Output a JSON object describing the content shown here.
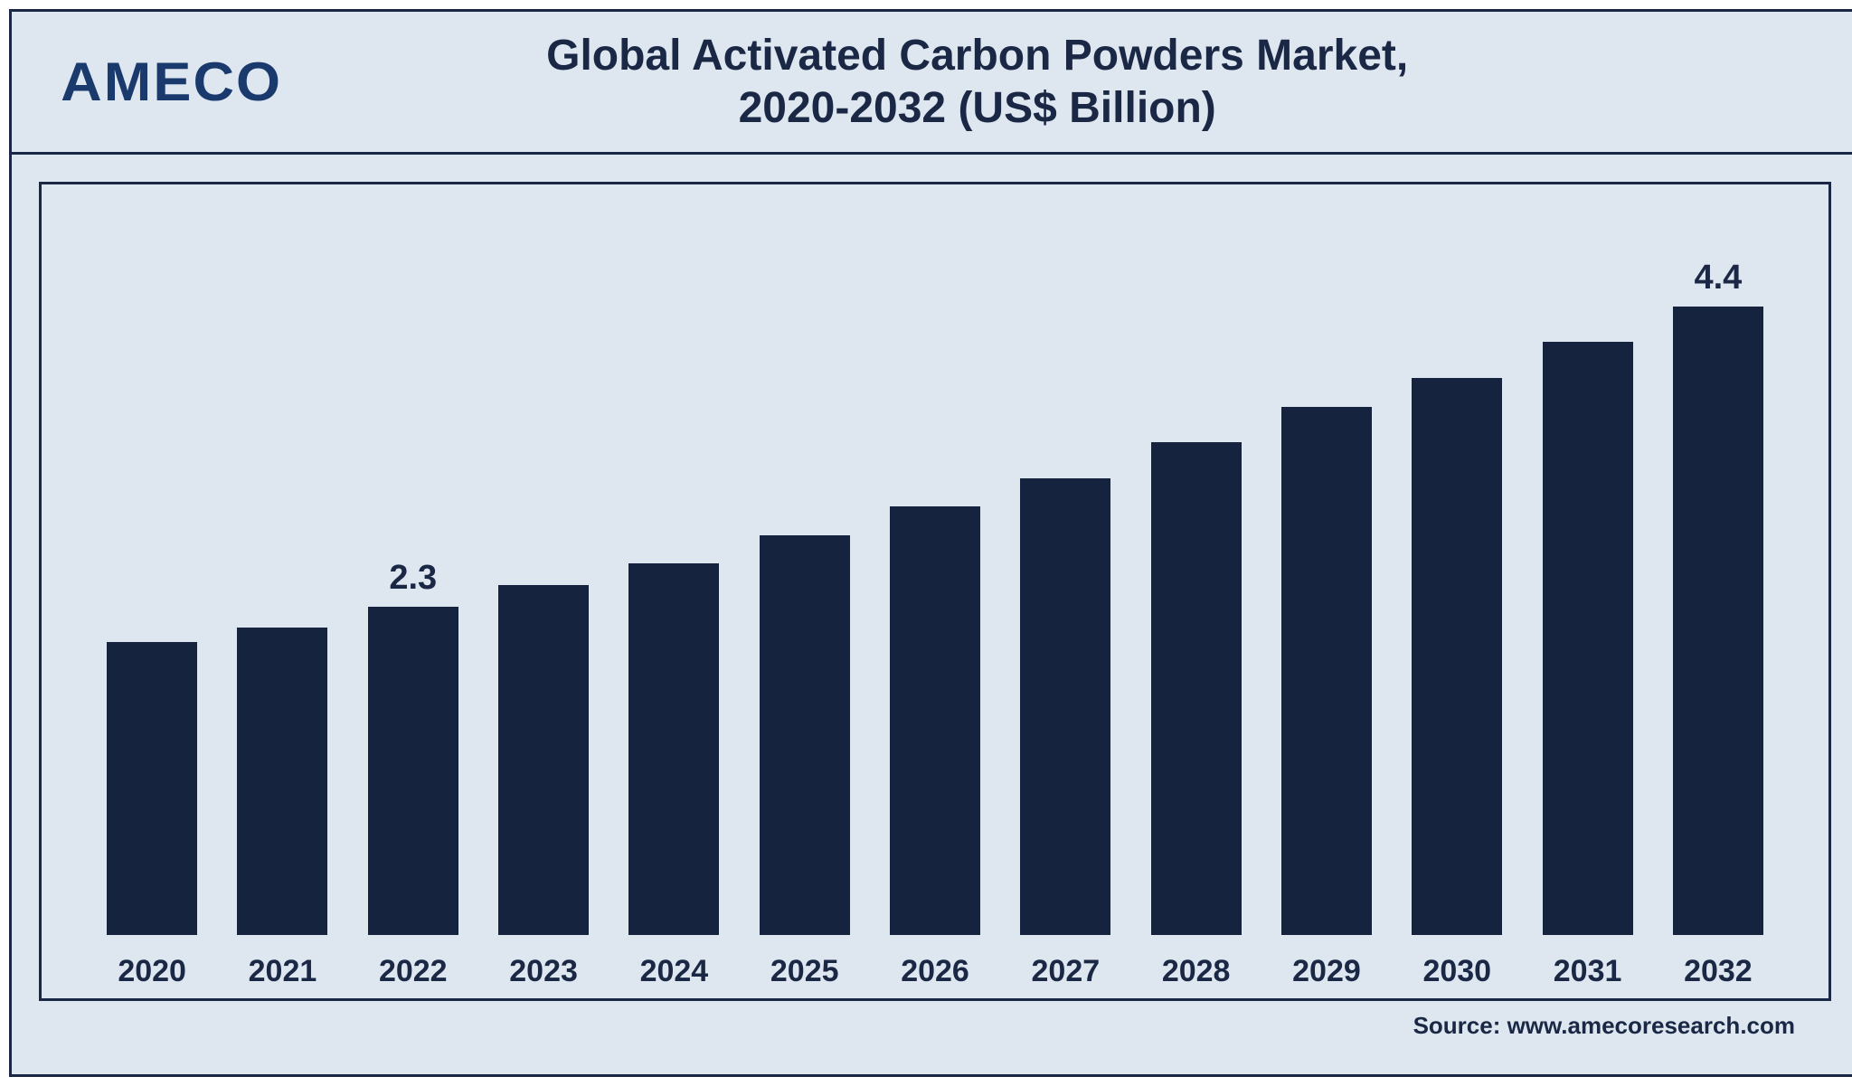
{
  "brand": {
    "logo_text": "AMECO",
    "logo_color": "#1a3a6e"
  },
  "title": {
    "line1": "Global Activated Carbon Powders Market,",
    "line2": "2020-2032 (US$ Billion)",
    "fontsize": 48,
    "color": "#1a2845"
  },
  "chart": {
    "type": "bar",
    "categories": [
      "2020",
      "2021",
      "2022",
      "2023",
      "2024",
      "2025",
      "2026",
      "2027",
      "2028",
      "2029",
      "2030",
      "2031",
      "2032"
    ],
    "values": [
      2.05,
      2.15,
      2.3,
      2.45,
      2.6,
      2.8,
      3.0,
      3.2,
      3.45,
      3.7,
      3.9,
      4.15,
      4.4
    ],
    "ylim": [
      0,
      5.0
    ],
    "bar_color": "#16233f",
    "background_color": "#dee7f0",
    "border_color": "#1a2845",
    "bar_width_ratio": 0.7,
    "data_labels": [
      {
        "index": 2,
        "text": "2.3"
      },
      {
        "index": 12,
        "text": "4.4"
      }
    ],
    "axis_label_fontsize": 34,
    "axis_label_fontweight": 700,
    "data_label_fontsize": 38,
    "data_label_fontweight": 700
  },
  "source": {
    "text": "Source: www.amecoresearch.com",
    "fontsize": 26,
    "color": "#1a2845"
  }
}
